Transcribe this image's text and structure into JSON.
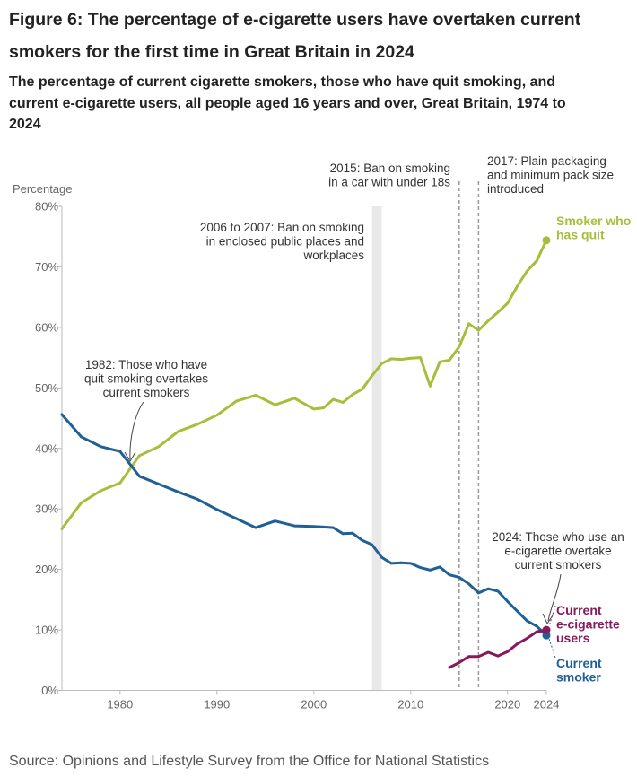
{
  "title": "Figure 6: The percentage of e-cigarette users have overtaken current smokers for the first time in Great Britain in 2024",
  "subtitle": "The percentage of current cigarette smokers, those who have quit smoking, and current e-cigarette users, all people aged 16 years and over, Great Britain, 1974 to 2024",
  "source": "Source: Opinions and Lifestyle Survey from the Office for National Statistics",
  "colors": {
    "quit": "#a8bd3a",
    "smoker": "#206095",
    "ecig": "#871a5b",
    "axis": "#bbbbbb",
    "shade": "#e9e9e9",
    "dash": "#999999"
  },
  "chart_data": {
    "type": "line",
    "ylabel": "Percentage",
    "xlabel": "",
    "ylim": [
      0,
      80
    ],
    "xlim": [
      1974,
      2024
    ],
    "yticks": [
      0,
      10,
      20,
      30,
      40,
      50,
      60,
      70,
      80
    ],
    "ytick_labels": [
      "0%",
      "10%",
      "20%",
      "30%",
      "40%",
      "50%",
      "60%",
      "70%",
      "80%"
    ],
    "xticks": [
      1980,
      1990,
      2000,
      2010,
      2020,
      2024
    ],
    "xtick_labels": [
      "1980",
      "1990",
      "2000",
      "2010",
      "2020",
      "2024"
    ],
    "grid": false,
    "series": [
      {
        "key": "quit",
        "name": "Smoker who has quit",
        "label_lines": [
          "Smoker who",
          "has quit"
        ],
        "x": [
          1974,
          1976,
          1978,
          1980,
          1982,
          1984,
          1986,
          1988,
          1990,
          1992,
          1994,
          1996,
          1998,
          2000,
          2001,
          2002,
          2003,
          2004,
          2005,
          2006,
          2007,
          2008,
          2009,
          2010,
          2011,
          2012,
          2013,
          2014,
          2015,
          2016,
          2017,
          2018,
          2019,
          2020,
          2021,
          2022,
          2023,
          2024
        ],
        "values": [
          26.7,
          31.0,
          33.0,
          34.3,
          38.8,
          40.3,
          42.8,
          44.0,
          45.5,
          47.8,
          48.8,
          47.2,
          48.3,
          46.5,
          46.7,
          48.1,
          47.6,
          48.9,
          49.8,
          52.0,
          54.0,
          54.8,
          54.7,
          54.9,
          55.0,
          50.3,
          54.3,
          54.6,
          56.8,
          60.6,
          59.5,
          61.1,
          62.5,
          64.0,
          66.8,
          69.3,
          71.0,
          74.4
        ]
      },
      {
        "key": "smoker",
        "name": "Current smoker",
        "label_lines": [
          "Current",
          "smoker"
        ],
        "x": [
          1974,
          1976,
          1978,
          1980,
          1982,
          1984,
          1986,
          1988,
          1990,
          1992,
          1994,
          1996,
          1998,
          2000,
          2001,
          2002,
          2003,
          2004,
          2005,
          2006,
          2007,
          2008,
          2009,
          2010,
          2011,
          2012,
          2013,
          2014,
          2015,
          2016,
          2017,
          2018,
          2019,
          2020,
          2021,
          2022,
          2023,
          2024
        ],
        "values": [
          45.6,
          41.9,
          40.3,
          39.5,
          35.4,
          34.1,
          32.8,
          31.6,
          29.9,
          28.4,
          26.9,
          28.0,
          27.2,
          27.1,
          27.0,
          26.9,
          25.9,
          26.0,
          24.8,
          24.1,
          22.0,
          21.0,
          21.1,
          21.0,
          20.3,
          19.9,
          20.4,
          19.1,
          18.7,
          17.6,
          16.1,
          16.8,
          16.4,
          14.7,
          13.1,
          11.5,
          10.6,
          9.1
        ]
      },
      {
        "key": "ecig",
        "name": "Current e-cigarette users",
        "label_lines": [
          "Current",
          "e-cigarette",
          "users"
        ],
        "x": [
          2014,
          2015,
          2016,
          2017,
          2018,
          2019,
          2020,
          2021,
          2022,
          2023,
          2024
        ],
        "values": [
          3.8,
          4.6,
          5.6,
          5.6,
          6.3,
          5.7,
          6.4,
          7.7,
          8.6,
          9.7,
          10.0
        ]
      }
    ],
    "annotations": [
      {
        "key": "a1982",
        "lines": [
          "1982: Those who have",
          "quit smoking overtakes",
          "current smokers"
        ]
      },
      {
        "key": "a2006",
        "lines": [
          "2006 to 2007: Ban on smoking",
          "in enclosed public places and",
          "workplaces"
        ]
      },
      {
        "key": "a2015",
        "lines": [
          "2015: Ban on smoking",
          "in a car with under 18s"
        ]
      },
      {
        "key": "a2017",
        "lines": [
          "2017: Plain packaging",
          "and minimum pack size",
          "introduced"
        ]
      },
      {
        "key": "a2024",
        "lines": [
          "2024: Those who use an",
          "e-cigarette overtake",
          "current smokers"
        ]
      }
    ]
  }
}
